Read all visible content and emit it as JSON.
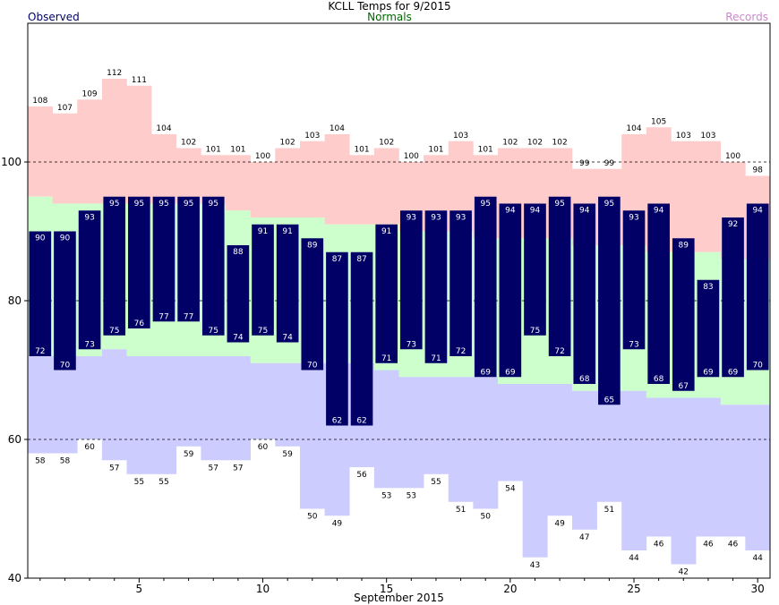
{
  "chart_data": {
    "type": "bar",
    "title": "KCLL Temps for 9/2015",
    "xlabel": "September 2015",
    "ylim": [
      40,
      120
    ],
    "y_ticks": [
      40,
      60,
      80,
      100
    ],
    "x_ticks": [
      5,
      10,
      15,
      20,
      25,
      30
    ],
    "gridlines_at": [
      60,
      80,
      100
    ],
    "legend": [
      {
        "name": "Observed",
        "color": "#000066"
      },
      {
        "name": "Normals",
        "color": "#006600"
      },
      {
        "name": "Records",
        "color": "#cc88cc"
      }
    ],
    "colors": {
      "observed": "#000066",
      "normal": "#ccffcc",
      "record_high": "#ffcccc",
      "record_low": "#ccccff",
      "obs_label": "#ffffff",
      "record_label": "#000000"
    },
    "days": [
      1,
      2,
      3,
      4,
      5,
      6,
      7,
      8,
      9,
      10,
      11,
      12,
      13,
      14,
      15,
      16,
      17,
      18,
      19,
      20,
      21,
      22,
      23,
      24,
      25,
      26,
      27,
      28,
      29,
      30
    ],
    "observed_high": [
      90,
      90,
      93,
      95,
      95,
      95,
      95,
      95,
      88,
      91,
      91,
      89,
      87,
      87,
      91,
      93,
      93,
      93,
      95,
      94,
      94,
      95,
      94,
      95,
      93,
      94,
      89,
      83,
      92,
      94
    ],
    "observed_low": [
      72,
      70,
      73,
      75,
      76,
      77,
      77,
      75,
      74,
      75,
      74,
      70,
      62,
      62,
      71,
      73,
      71,
      72,
      69,
      69,
      75,
      72,
      68,
      65,
      73,
      68,
      67,
      69,
      69,
      70
    ],
    "normal_high": [
      95,
      94,
      94,
      94,
      94,
      94,
      94,
      94,
      93,
      92,
      92,
      92,
      91,
      91,
      91,
      90,
      90,
      90,
      89,
      89,
      89,
      89,
      88,
      88,
      88,
      87,
      87,
      87,
      86,
      86
    ],
    "normal_low": [
      72,
      72,
      72,
      73,
      72,
      72,
      72,
      72,
      72,
      71,
      71,
      71,
      71,
      71,
      70,
      69,
      69,
      69,
      69,
      68,
      68,
      68,
      67,
      67,
      67,
      66,
      66,
      66,
      65,
      65
    ],
    "record_high": [
      108,
      107,
      109,
      112,
      111,
      104,
      102,
      101,
      101,
      100,
      102,
      103,
      104,
      101,
      102,
      100,
      101,
      103,
      101,
      102,
      102,
      102,
      99,
      99,
      104,
      105,
      103,
      103,
      100,
      98
    ],
    "record_low": [
      58,
      58,
      60,
      57,
      55,
      55,
      59,
      57,
      57,
      60,
      59,
      50,
      49,
      56,
      53,
      53,
      55,
      51,
      50,
      54,
      43,
      49,
      47,
      51,
      44,
      46,
      42,
      46,
      46,
      44
    ]
  }
}
